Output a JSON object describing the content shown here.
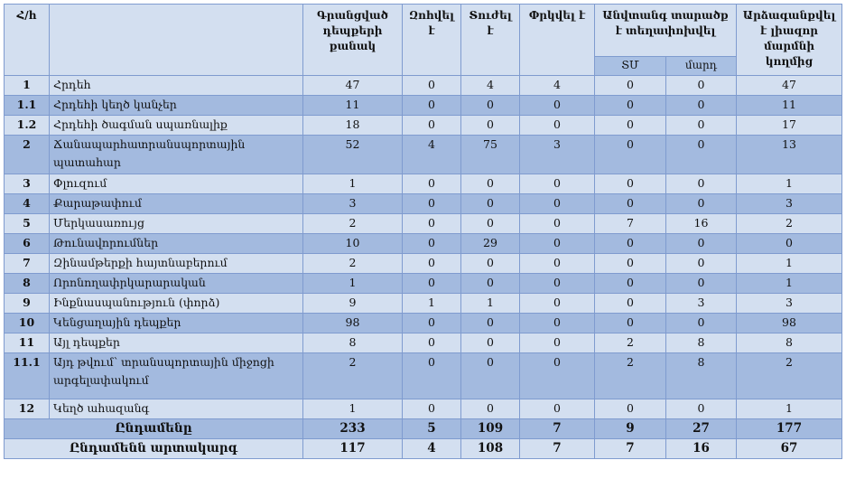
{
  "header": {
    "num": "Հ/հ",
    "name": "",
    "count": "Գրանցված դեպքերի քանակ",
    "died": "Զոհվել է",
    "injured": "Տուժել է",
    "rescued": "Փրկվել է",
    "moved": "Անվտանգ տարածք է տեղափոխվել",
    "moved_sm": "ՏՄ",
    "moved_people": "մարդ",
    "responded": "Արձագանքվել է լիազոր մարմնի կողմից"
  },
  "rows": [
    {
      "num": "1",
      "name": "Հրդեհ",
      "values": [
        "47",
        "0",
        "4",
        "4",
        "0",
        "0",
        "47"
      ]
    },
    {
      "num": "1.1",
      "name": "Հրդեհի կեղծ կանչեր",
      "values": [
        "11",
        "0",
        "0",
        "0",
        "0",
        "0",
        "11"
      ]
    },
    {
      "num": "1.2",
      "name": "Հրդեհի ծագման սպառնալիք",
      "values": [
        "18",
        "0",
        "0",
        "0",
        "0",
        "0",
        "17"
      ]
    },
    {
      "num": "2",
      "name": "Ճանապարհատրանսպորտային պատահար",
      "values": [
        "52",
        "4",
        "75",
        "3",
        "0",
        "0",
        "13"
      ]
    },
    {
      "num": "3",
      "name": "Փլուզում",
      "values": [
        "1",
        "0",
        "0",
        "0",
        "0",
        "0",
        "1"
      ]
    },
    {
      "num": "4",
      "name": "Քարաթափում",
      "values": [
        "3",
        "0",
        "0",
        "0",
        "0",
        "0",
        "3"
      ]
    },
    {
      "num": "5",
      "name": "Մերկասառույց",
      "values": [
        "2",
        "0",
        "0",
        "0",
        "7",
        "16",
        "2"
      ]
    },
    {
      "num": "6",
      "name": "Թունավորումներ",
      "values": [
        "10",
        "0",
        "29",
        "0",
        "0",
        "0",
        "0"
      ]
    },
    {
      "num": "7",
      "name": "Զինամթերքի հայտնաբերում",
      "values": [
        "2",
        "0",
        "0",
        "0",
        "0",
        "0",
        "1"
      ]
    },
    {
      "num": "8",
      "name": "Որոնողափրկարարական",
      "values": [
        "1",
        "0",
        "0",
        "0",
        "0",
        "0",
        "1"
      ]
    },
    {
      "num": "9",
      "name": "Ինքնասպանություն (փորձ)",
      "values": [
        "9",
        "1",
        "1",
        "0",
        "0",
        "3",
        "3"
      ]
    },
    {
      "num": "10",
      "name": "Կենցաղային դեպքեր",
      "values": [
        "98",
        "0",
        "0",
        "0",
        "0",
        "0",
        "98"
      ]
    },
    {
      "num": "11",
      "name": "Այլ դեպքեր",
      "values": [
        "8",
        "0",
        "0",
        "0",
        "2",
        "8",
        "8"
      ]
    },
    {
      "num": "11.1",
      "name": "Այդ թվում՝ տրանսպորտային միջոցի արգելափակում",
      "values": [
        "2",
        "0",
        "0",
        "0",
        "2",
        "8",
        "2"
      ]
    },
    {
      "num": "12",
      "name": "Կեղծ ահազանգ",
      "values": [
        "1",
        "0",
        "0",
        "0",
        "0",
        "0",
        "1"
      ]
    }
  ],
  "totals": [
    {
      "label": "Ընդամենը",
      "values": [
        "233",
        "5",
        "109",
        "7",
        "9",
        "27",
        "177"
      ]
    },
    {
      "label": "Ընդամենն արտակարգ",
      "values": [
        "117",
        "4",
        "108",
        "7",
        "7",
        "16",
        "67"
      ]
    }
  ],
  "colors": {
    "light": "#d3dff0",
    "dark": "#a3badf",
    "border": "#7f9bcf"
  }
}
